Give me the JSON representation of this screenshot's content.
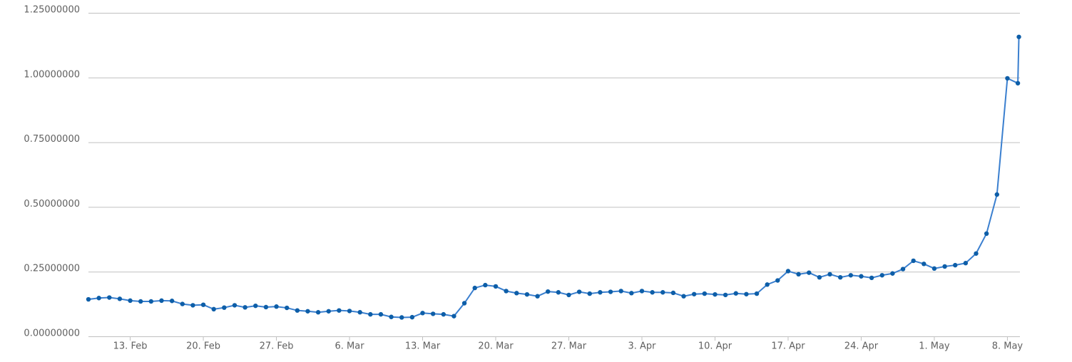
{
  "chart_data": {
    "type": "line",
    "x": [
      40,
      41,
      42,
      43,
      44,
      45,
      46,
      47,
      48,
      49,
      50,
      51,
      52,
      53,
      54,
      55,
      56,
      57,
      58,
      59,
      60,
      61,
      62,
      63,
      64,
      65,
      66,
      67,
      68,
      69,
      70,
      71,
      72,
      73,
      74,
      75,
      76,
      77,
      78,
      79,
      80,
      81,
      82,
      83,
      84,
      85,
      86,
      87,
      88,
      89,
      90,
      91,
      92,
      93,
      94,
      95,
      96,
      97,
      98,
      99,
      100,
      101,
      102,
      103,
      104,
      105,
      106,
      107,
      108,
      109,
      110,
      111,
      112,
      113,
      114,
      115,
      116,
      117,
      118,
      119,
      120,
      121,
      122,
      123,
      124,
      125,
      126,
      127,
      128,
      129,
      129.1
    ],
    "series": [
      {
        "color": "#3a7fcf",
        "marker_color": "#0d5ea8",
        "values": [
          0.143,
          0.148,
          0.15,
          0.145,
          0.138,
          0.135,
          0.135,
          0.138,
          0.137,
          0.125,
          0.12,
          0.122,
          0.105,
          0.111,
          0.12,
          0.112,
          0.118,
          0.113,
          0.115,
          0.11,
          0.1,
          0.097,
          0.093,
          0.097,
          0.1,
          0.098,
          0.093,
          0.085,
          0.085,
          0.075,
          0.073,
          0.074,
          0.09,
          0.087,
          0.085,
          0.078,
          0.128,
          0.187,
          0.198,
          0.193,
          0.175,
          0.167,
          0.162,
          0.155,
          0.173,
          0.17,
          0.16,
          0.172,
          0.165,
          0.17,
          0.172,
          0.175,
          0.167,
          0.175,
          0.17,
          0.17,
          0.168,
          0.155,
          0.163,
          0.165,
          0.162,
          0.16,
          0.166,
          0.163,
          0.165,
          0.2,
          0.216,
          0.252,
          0.24,
          0.246,
          0.228,
          0.24,
          0.228,
          0.236,
          0.232,
          0.226,
          0.236,
          0.243,
          0.26,
          0.292,
          0.28,
          0.262,
          0.27,
          0.275,
          0.283,
          0.32,
          0.397,
          0.548,
          0.997,
          0.978,
          1.157
        ]
      }
    ],
    "xlim": [
      40,
      129.2
    ],
    "xticks": [
      {
        "value": 44,
        "label": "13. Feb"
      },
      {
        "value": 51,
        "label": "20. Feb"
      },
      {
        "value": 58,
        "label": "27. Feb"
      },
      {
        "value": 65,
        "label": "6. Mar"
      },
      {
        "value": 72,
        "label": "13. Mar"
      },
      {
        "value": 79,
        "label": "20. Mar"
      },
      {
        "value": 86,
        "label": "27. Mar"
      },
      {
        "value": 93,
        "label": "3. Apr"
      },
      {
        "value": 100,
        "label": "10. Apr"
      },
      {
        "value": 107,
        "label": "17. Apr"
      },
      {
        "value": 114,
        "label": "24. Apr"
      },
      {
        "value": 121,
        "label": "1. May"
      },
      {
        "value": 128,
        "label": "8. May"
      }
    ],
    "ylim": [
      0,
      1.25
    ],
    "yticks": [
      {
        "value": 0,
        "label": "0.00000000"
      },
      {
        "value": 0.25,
        "label": "0.25000000"
      },
      {
        "value": 0.5,
        "label": "0.50000000"
      },
      {
        "value": 0.75,
        "label": "0.75000000"
      },
      {
        "value": 1,
        "label": "1.00000000"
      },
      {
        "value": 1.25,
        "label": "1.25000000"
      }
    ],
    "grid": true
  }
}
